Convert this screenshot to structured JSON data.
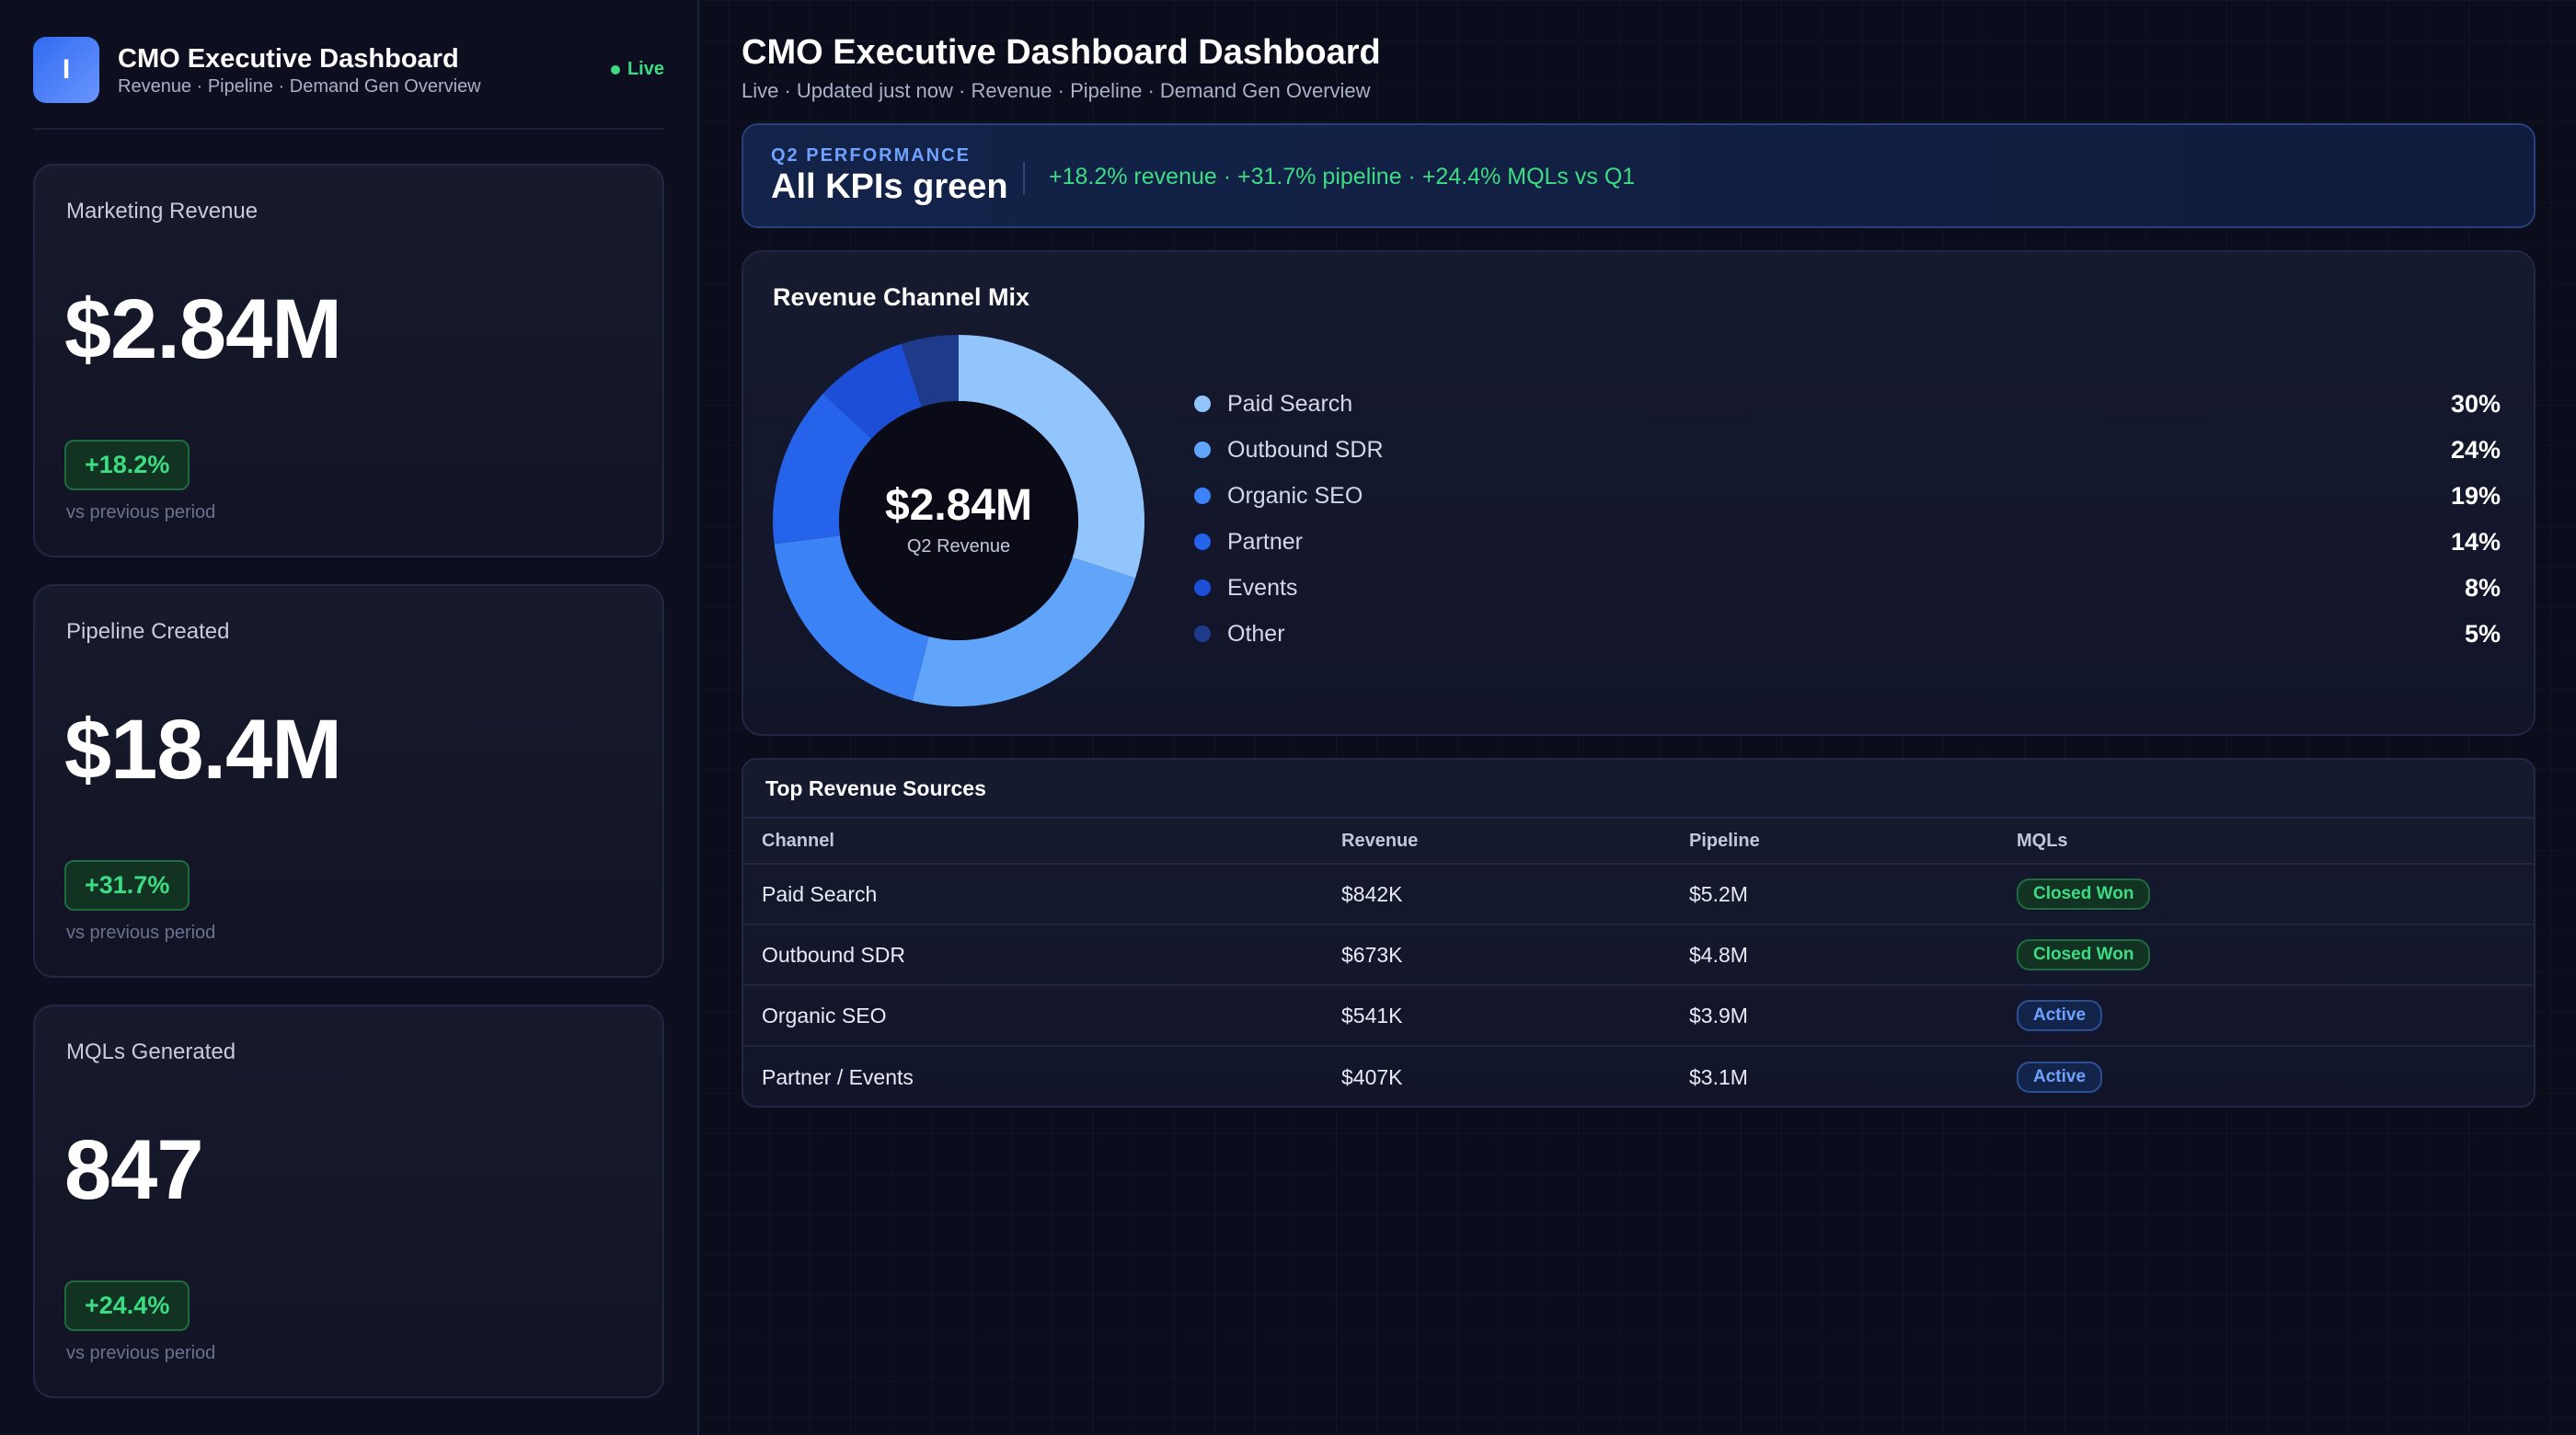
{
  "colors": {
    "accent": "#4f8bff",
    "positive": "#3ddc84",
    "background": "#0b0d1c",
    "card": "#161a2e"
  },
  "sidebar": {
    "logo_letter": "I",
    "app_title": "CMO Executive Dashboard",
    "app_subtitle": "Revenue · Pipeline · Demand Gen Overview",
    "live_label": "Live",
    "kpis": [
      {
        "label": "Marketing Revenue",
        "value": "$2.84M",
        "delta": "+18.2%",
        "foot": "vs previous period"
      },
      {
        "label": "Pipeline Created",
        "value": "$18.4M",
        "delta": "+31.7%",
        "foot": "vs previous period"
      },
      {
        "label": "MQLs Generated",
        "value": "847",
        "delta": "+24.4%",
        "foot": "vs previous period"
      }
    ]
  },
  "header": {
    "title": "CMO Executive Dashboard Dashboard",
    "subtitle": "Live · Updated just now · Revenue · Pipeline · Demand Gen Overview"
  },
  "banner": {
    "eyebrow": "Q2 PERFORMANCE",
    "title": "All KPIs green",
    "text": "+18.2% revenue · +31.7% pipeline · +24.4% MQLs vs Q1"
  },
  "channel_mix": {
    "title": "Revenue Channel Mix",
    "center_value": "$2.84M",
    "center_label": "Q2 Revenue"
  },
  "chart_data": {
    "type": "pie",
    "title": "Revenue Channel Mix",
    "categories": [
      "Paid Search",
      "Outbound SDR",
      "Organic SEO",
      "Partner",
      "Events",
      "Other"
    ],
    "values": [
      30,
      24,
      19,
      14,
      8,
      5
    ],
    "value_labels": [
      "30%",
      "24%",
      "19%",
      "14%",
      "8%",
      "5%"
    ],
    "colors": [
      "#93c5fd",
      "#60a5fa",
      "#3b82f6",
      "#2563eb",
      "#1d4ed8",
      "#1e3a8a"
    ],
    "donut": true
  },
  "table": {
    "title": "Top Revenue Sources",
    "columns": [
      "Channel",
      "Revenue",
      "Pipeline",
      "MQLs"
    ],
    "rows": [
      {
        "channel": "Paid Search",
        "revenue": "$842K",
        "pipeline": "$5.2M",
        "status": "Closed Won",
        "status_kind": "won"
      },
      {
        "channel": "Outbound SDR",
        "revenue": "$673K",
        "pipeline": "$4.8M",
        "status": "Closed Won",
        "status_kind": "won"
      },
      {
        "channel": "Organic SEO",
        "revenue": "$541K",
        "pipeline": "$3.9M",
        "status": "Active",
        "status_kind": "active"
      },
      {
        "channel": "Partner / Events",
        "revenue": "$407K",
        "pipeline": "$3.1M",
        "status": "Active",
        "status_kind": "active"
      }
    ]
  }
}
